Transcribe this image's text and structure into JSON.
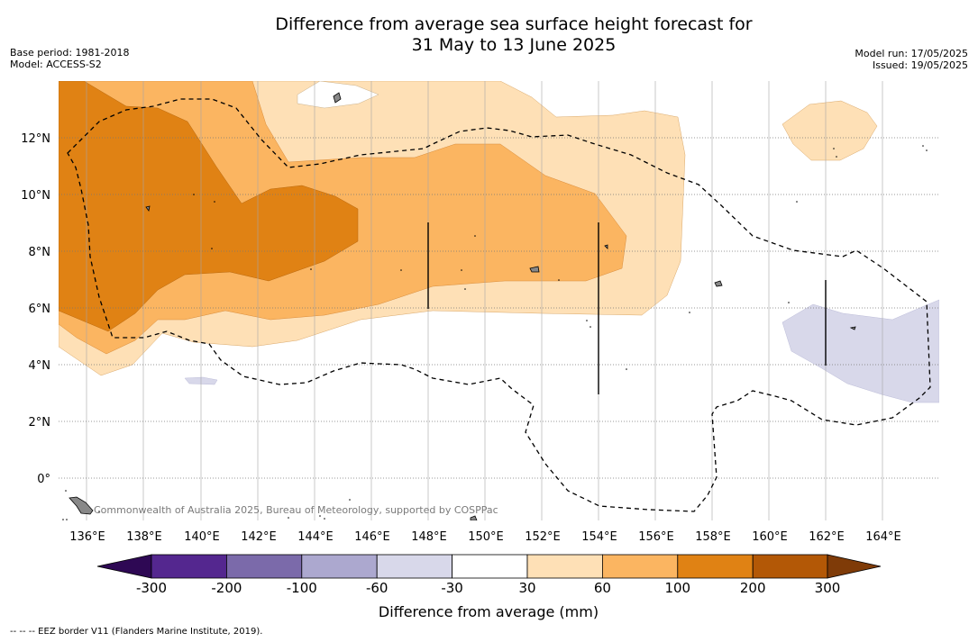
{
  "title_line1": "Difference from average sea surface height forecast for",
  "title_line2": "31 May to 13 June 2025",
  "base_period": "Base period: 1981-2018",
  "model": "Model: ACCESS-S2",
  "model_run": "Model run: 17/05/2025",
  "issued": "Issued: 19/05/2025",
  "credit": "Commonwealth of Australia 2025, Bureau of Meteorology, supported by COSPPac",
  "footnote": "-- -- -- EEZ border V11 (Flanders Marine Institute, 2019).",
  "lon_ticks": [
    "136°E",
    "138°E",
    "140°E",
    "142°E",
    "144°E",
    "146°E",
    "148°E",
    "150°E",
    "152°E",
    "154°E",
    "156°E",
    "158°E",
    "160°E",
    "162°E",
    "164°E"
  ],
  "lat_ticks": [
    "12°N",
    "10°N",
    "8°N",
    "6°N",
    "4°N",
    "2°N",
    "0°"
  ],
  "colorbar": {
    "title": "Difference from average (mm)",
    "labels": [
      "-300",
      "-200",
      "-100",
      "-60",
      "-30",
      "30",
      "60",
      "100",
      "200",
      "300"
    ],
    "colors": [
      "#2e0854",
      "#54278f",
      "#7b6aaa",
      "#aca8cf",
      "#d8d8ea",
      "#ffffff",
      "#fee0b6",
      "#fbb561",
      "#e08214",
      "#b35806",
      "#7f3b08"
    ]
  },
  "map_data": {
    "lon_range": [
      135,
      166
    ],
    "lat_range": [
      -1.5,
      14
    ]
  }
}
